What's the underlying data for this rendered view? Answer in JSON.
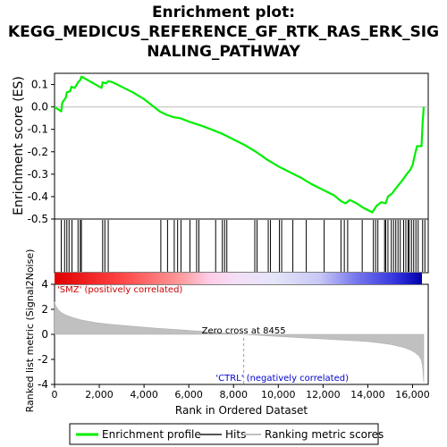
{
  "chart_data": {
    "type": "line",
    "title_lines": [
      "Enrichment plot:",
      "KEGG_MEDICUS_REFERENCE_GF_RTK_RAS_ERK_SIG",
      "NALING_PATHWAY"
    ],
    "xlabel": "Rank in Ordered Dataset",
    "ylabel_top": "Enrichment score (ES)",
    "ylabel_bottom": "Ranked list metric (Signal2Noise)",
    "xlim": [
      0,
      16700
    ],
    "x_ticks": [
      0,
      2000,
      4000,
      6000,
      8000,
      10000,
      12000,
      14000,
      16000
    ],
    "x_tick_labels": [
      "0",
      "2,000",
      "4,000",
      "6,000",
      "8,000",
      "10,000",
      "12,000",
      "14,000",
      "16,000"
    ],
    "es_ylim": [
      -0.5,
      0.15
    ],
    "es_ticks": [
      0.1,
      0.0,
      -0.1,
      -0.2,
      -0.3,
      -0.4,
      -0.5
    ],
    "es_tick_labels": [
      "0.1",
      "0.0",
      "-0.1",
      "-0.2",
      "-0.3",
      "-0.4",
      "-0.5"
    ],
    "metric_ylim": [
      -4,
      4
    ],
    "metric_ticks": [
      4,
      2,
      0,
      -2,
      -4
    ],
    "metric_tick_labels": [
      "4",
      "2",
      "0",
      "-2",
      "-4"
    ],
    "series": [
      {
        "name": "Enrichment profile",
        "color": "#00ee00",
        "x": [
          0,
          300,
          350,
          500,
          550,
          700,
          750,
          900,
          1000,
          1050,
          1150,
          1200,
          1300,
          2100,
          2150,
          2300,
          2400,
          2600,
          3000,
          3500,
          4000,
          4700,
          5000,
          5300,
          5600,
          6000,
          6300,
          6600,
          7000,
          7500,
          8000,
          8500,
          9000,
          9500,
          10000,
          10500,
          11000,
          11500,
          12000,
          12500,
          12800,
          13000,
          13200,
          13500,
          13800,
          14000,
          14200,
          14300,
          14400,
          14600,
          14800,
          14900,
          15100,
          15200,
          15400,
          15600,
          15700,
          15900,
          16000,
          16100,
          16200,
          16400,
          16450,
          16500
        ],
        "y": [
          0.0,
          -0.02,
          0.02,
          0.04,
          0.065,
          0.07,
          0.09,
          0.085,
          0.1,
          0.11,
          0.12,
          0.135,
          0.13,
          0.085,
          0.11,
          0.105,
          0.115,
          0.11,
          0.09,
          0.065,
          0.035,
          -0.02,
          -0.035,
          -0.045,
          -0.05,
          -0.065,
          -0.075,
          -0.085,
          -0.1,
          -0.12,
          -0.145,
          -0.17,
          -0.2,
          -0.235,
          -0.265,
          -0.29,
          -0.315,
          -0.345,
          -0.37,
          -0.395,
          -0.42,
          -0.43,
          -0.415,
          -0.43,
          -0.45,
          -0.46,
          -0.47,
          -0.455,
          -0.44,
          -0.425,
          -0.43,
          -0.4,
          -0.385,
          -0.37,
          -0.345,
          -0.32,
          -0.305,
          -0.28,
          -0.26,
          -0.215,
          -0.175,
          -0.175,
          -0.07,
          0.0
        ]
      },
      {
        "name": "Hits",
        "color": "#000000",
        "positions": [
          300,
          450,
          550,
          650,
          780,
          1050,
          1150,
          1200,
          2150,
          2250,
          2400,
          4750,
          5050,
          5350,
          5500,
          5650,
          6050,
          6350,
          6450,
          7200,
          7500,
          7600,
          7700,
          8950,
          9050,
          9550,
          9650,
          10050,
          10150,
          10650,
          11250,
          12050,
          12800,
          12950,
          13100,
          13750,
          14250,
          14350,
          14450,
          14750,
          14800,
          14900,
          15050,
          15150,
          15250,
          15350,
          15450,
          15600,
          15700,
          15800,
          15850,
          15950,
          16050,
          16150,
          16250,
          16450,
          16550
        ]
      },
      {
        "name": "Ranking metric scores",
        "color": "#c0c0c0",
        "x": [
          0,
          50,
          150,
          300,
          500,
          800,
          1200,
          1800,
          2500,
          3500,
          4500,
          5500,
          6500,
          7500,
          8455,
          9500,
          10500,
          11500,
          12500,
          13500,
          14000,
          14500,
          15000,
          15300,
          15600,
          15900,
          16100,
          16300,
          16400,
          16450,
          16500
        ],
        "y": [
          2.6,
          2.3,
          2.0,
          1.75,
          1.55,
          1.35,
          1.15,
          0.95,
          0.8,
          0.65,
          0.5,
          0.38,
          0.25,
          0.12,
          0.0,
          -0.12,
          -0.22,
          -0.32,
          -0.42,
          -0.52,
          -0.58,
          -0.68,
          -0.8,
          -0.92,
          -1.05,
          -1.25,
          -1.45,
          -1.75,
          -2.1,
          -2.6,
          -3.8
        ]
      }
    ],
    "zero_cross_label": "Zero cross at 8455",
    "zero_cross_x": 8455,
    "positive_label": "'SMZ' (positively correlated)",
    "negative_label": "'CTRL' (negatively correlated)",
    "legend": {
      "placement": "bottom",
      "items": [
        {
          "label": "Enrichment profile",
          "color": "#00ee00"
        },
        {
          "label": "Hits",
          "color": "#555555"
        },
        {
          "label": "Ranking metric scores",
          "color": "#c0c0c0"
        }
      ]
    }
  }
}
